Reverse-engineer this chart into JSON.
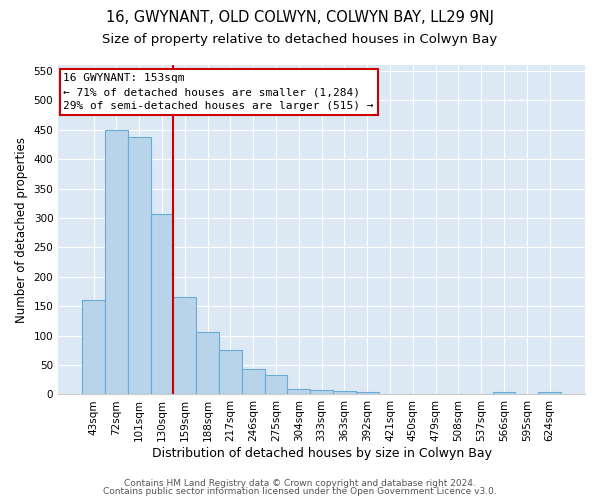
{
  "title": "16, GWYNANT, OLD COLWYN, COLWYN BAY, LL29 9NJ",
  "subtitle": "Size of property relative to detached houses in Colwyn Bay",
  "xlabel": "Distribution of detached houses by size in Colwyn Bay",
  "ylabel": "Number of detached properties",
  "categories": [
    "43sqm",
    "72sqm",
    "101sqm",
    "130sqm",
    "159sqm",
    "188sqm",
    "217sqm",
    "246sqm",
    "275sqm",
    "304sqm",
    "333sqm",
    "363sqm",
    "392sqm",
    "421sqm",
    "450sqm",
    "479sqm",
    "508sqm",
    "537sqm",
    "566sqm",
    "595sqm",
    "624sqm"
  ],
  "values": [
    160,
    450,
    438,
    307,
    165,
    106,
    75,
    43,
    33,
    10,
    7,
    6,
    5,
    1,
    1,
    1,
    1,
    1,
    5,
    1,
    5
  ],
  "bar_color": "#b8d4ea",
  "bar_edge_color": "#6aaad4",
  "bar_edge_width": 0.8,
  "red_line_index": 4,
  "red_line_color": "#cc0000",
  "annotation_text": "16 GWYNANT: 153sqm\n← 71% of detached houses are smaller (1,284)\n29% of semi-detached houses are larger (515) →",
  "annotation_box_color": "#ffffff",
  "annotation_box_edge_color": "#cc0000",
  "ylim": [
    0,
    560
  ],
  "yticks": [
    0,
    50,
    100,
    150,
    200,
    250,
    300,
    350,
    400,
    450,
    500,
    550
  ],
  "background_color": "#dce9f5",
  "footer_line1": "Contains HM Land Registry data © Crown copyright and database right 2024.",
  "footer_line2": "Contains public sector information licensed under the Open Government Licence v3.0.",
  "title_fontsize": 10.5,
  "subtitle_fontsize": 9.5,
  "xlabel_fontsize": 9,
  "ylabel_fontsize": 8.5,
  "tick_fontsize": 7.5,
  "annotation_fontsize": 8,
  "footer_fontsize": 6.5
}
